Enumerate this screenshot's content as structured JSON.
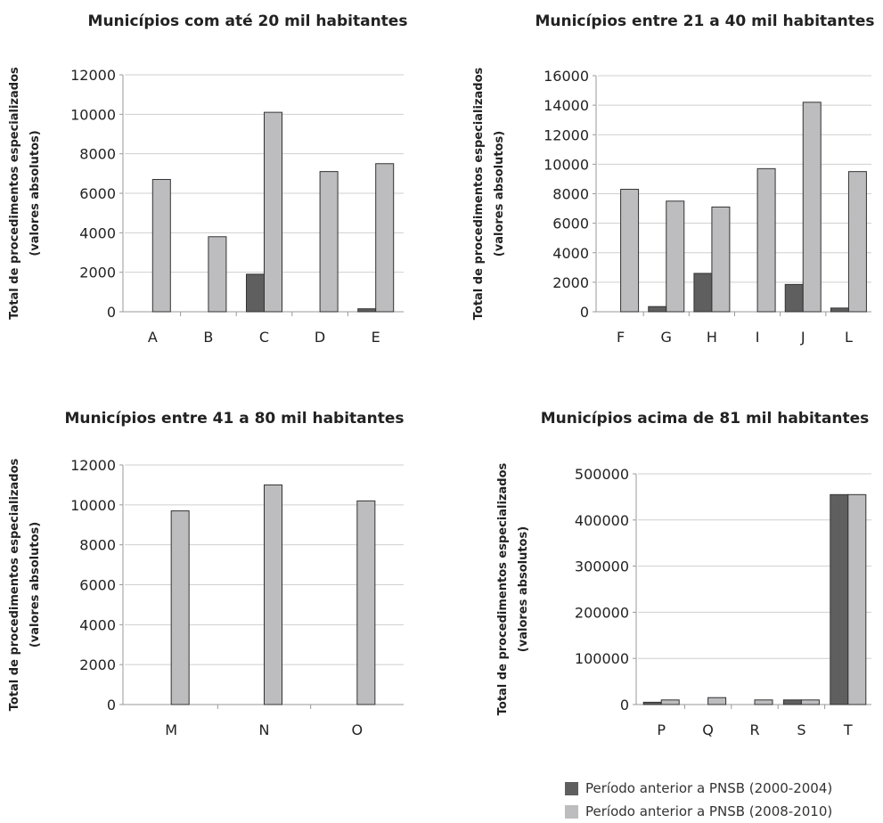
{
  "colors": {
    "series_1": "#5f5f5f",
    "series_2": "#bdbdbf",
    "gridline": "#cfcfcf",
    "axis": "#999999",
    "text": "#222222"
  },
  "legend": {
    "items": [
      {
        "label": "Período anterior a PNSB (2000-2004)",
        "color": "#5f5f5f"
      },
      {
        "label": "Período anterior a PNSB (2008-2010)",
        "color": "#bdbdbf"
      }
    ]
  },
  "chart_data": [
    {
      "type": "bar",
      "title": "Municípios com até 20 mil habitantes",
      "ylabel": [
        "Total de procedimentos especializados",
        "(valores absolutos)"
      ],
      "categories": [
        "A",
        "B",
        "C",
        "D",
        "E"
      ],
      "series": [
        {
          "name": "Período anterior a PNSB (2000-2004)",
          "values": [
            0,
            0,
            1900,
            0,
            150
          ]
        },
        {
          "name": "Período anterior a PNSB (2008-2010)",
          "values": [
            6700,
            3800,
            10100,
            7100,
            7500
          ]
        }
      ],
      "yticks": [
        "0",
        "2000",
        "4000",
        "6000",
        "8000",
        "10000",
        "12000"
      ],
      "ylim": [
        0,
        12000
      ],
      "grid": true
    },
    {
      "type": "bar",
      "title": "Municípios entre 21 a 40  mil habitantes",
      "ylabel": [
        "Total de procedimentos especializados",
        "(valores absolutos)"
      ],
      "categories": [
        "F",
        "G",
        "H",
        "I",
        "J",
        "L"
      ],
      "series": [
        {
          "name": "Período anterior a PNSB (2000-2004)",
          "values": [
            0,
            350,
            2600,
            0,
            1850,
            250
          ]
        },
        {
          "name": "Período anterior a PNSB (2008-2010)",
          "values": [
            8300,
            7500,
            7100,
            9700,
            14200,
            9500
          ]
        }
      ],
      "yticks": [
        "0",
        "2000",
        "4000",
        "6000",
        "8000",
        "10000",
        "12000",
        "14000",
        "16000"
      ],
      "ylim": [
        0,
        16000
      ],
      "grid": true
    },
    {
      "type": "bar",
      "title": "Municípios entre 41 a 80 mil habitantes",
      "ylabel": [
        "Total de procedimentos especializados",
        "(valores absolutos)"
      ],
      "categories": [
        "M",
        "N",
        "O"
      ],
      "series": [
        {
          "name": "Período anterior a PNSB (2000-2004)",
          "values": [
            0,
            0,
            0
          ]
        },
        {
          "name": "Período anterior a PNSB (2008-2010)",
          "values": [
            9700,
            11000,
            10200
          ]
        }
      ],
      "yticks": [
        "0",
        "2000",
        "4000",
        "6000",
        "8000",
        "10000",
        "12000"
      ],
      "ylim": [
        0,
        12000
      ],
      "grid": true
    },
    {
      "type": "bar",
      "title": "Municípios acima de 81 mil habitantes",
      "ylabel": [
        "Total de procedimentos especializados",
        "(valores absolutos)"
      ],
      "categories": [
        "P",
        "Q",
        "R",
        "S",
        "T"
      ],
      "series": [
        {
          "name": "Período anterior a PNSB (2000-2004)",
          "values": [
            5000,
            0,
            0,
            10000,
            455000
          ]
        },
        {
          "name": "Período anterior a PNSB (2008-2010)",
          "values": [
            10000,
            15000,
            10000,
            10000,
            455000
          ]
        }
      ],
      "yticks": [
        "0",
        "100000",
        "200000",
        "300000",
        "400000",
        "500000"
      ],
      "ylim": [
        0,
        500000
      ],
      "grid": true
    }
  ]
}
